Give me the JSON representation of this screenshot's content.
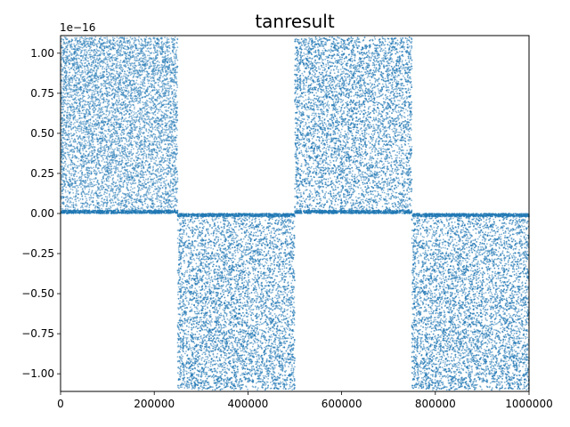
{
  "chart_data": {
    "type": "scatter",
    "title": "tanresult",
    "xlabel": "",
    "ylabel": "",
    "offset_label": "1e−16",
    "xlim": [
      0,
      1000000
    ],
    "ylim": [
      -1.11,
      1.11
    ],
    "x_ticks": [
      0,
      200000,
      400000,
      600000,
      800000,
      1000000
    ],
    "x_tick_labels": [
      "0",
      "200000",
      "400000",
      "600000",
      "800000",
      "1000000"
    ],
    "y_ticks": [
      1.0,
      0.75,
      0.5,
      0.25,
      0.0,
      -0.25,
      -0.5,
      -0.75,
      -1.0
    ],
    "y_tick_labels": [
      "1.00",
      "0.75",
      "0.50",
      "0.25",
      "0.00",
      "−0.25",
      "−0.50",
      "−0.75",
      "−1.00"
    ],
    "grid": false,
    "series_color": "#1f77b4",
    "description": "",
    "series": [
      {
        "x_range": [
          0,
          1000000
        ],
        "sign_segments": [
          {
            "x": [
              0,
              250000
            ],
            "sign": "positive",
            "y_range": [
              0.0,
              1.1
            ]
          },
          {
            "x": [
              250000,
              500000
            ],
            "sign": "negative",
            "y_range": [
              -1.1,
              0.0
            ]
          },
          {
            "x": [
              500000,
              750000
            ],
            "sign": "positive",
            "y_range": [
              0.0,
              1.1
            ]
          },
          {
            "x": [
              750000,
              1000000
            ],
            "sign": "negative",
            "y_range": [
              -1.1,
              0.0
            ]
          }
        ]
      }
    ]
  }
}
